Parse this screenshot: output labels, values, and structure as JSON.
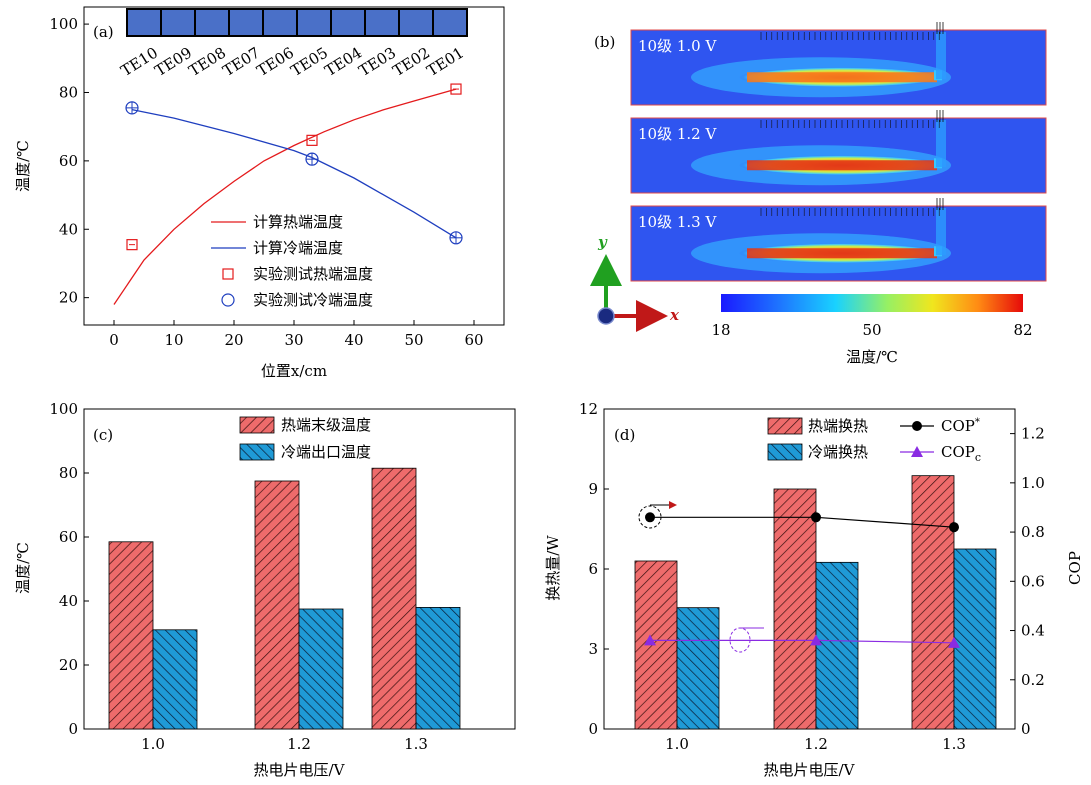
{
  "panels": {
    "a": {
      "tag": "(a)"
    },
    "b": {
      "tag": "(b)"
    },
    "c": {
      "tag": "(c)"
    },
    "d": {
      "tag": "(d)"
    }
  },
  "chart_data": [
    {
      "id": "a",
      "type": "line",
      "xlabel": "位置x/cm",
      "ylabel": "温度/℃",
      "xlim": [
        -5,
        65
      ],
      "ylim": [
        12,
        105
      ],
      "xticks": [
        0,
        10,
        20,
        30,
        40,
        50,
        60
      ],
      "yticks": [
        20,
        40,
        60,
        80,
        100
      ],
      "sensor_labels": [
        "TE10",
        "TE09",
        "TE08",
        "TE07",
        "TE06",
        "TE05",
        "TE04",
        "TE03",
        "TE02",
        "TE01"
      ],
      "series": [
        {
          "name": "计算热端温度",
          "style": "line",
          "color": "#e41a1c",
          "points": [
            [
              0,
              18
            ],
            [
              5,
              31
            ],
            [
              10,
              40
            ],
            [
              15,
              47.5
            ],
            [
              20,
              54
            ],
            [
              25,
              60
            ],
            [
              30,
              64.5
            ],
            [
              35,
              68.5
            ],
            [
              40,
              72
            ],
            [
              45,
              75
            ],
            [
              50,
              77.5
            ],
            [
              57,
              81
            ]
          ]
        },
        {
          "name": "计算冷端温度",
          "style": "line",
          "color": "#1f3fbf",
          "points": [
            [
              3,
              75
            ],
            [
              10,
              72.5
            ],
            [
              20,
              68
            ],
            [
              30,
              63
            ],
            [
              33,
              61
            ],
            [
              40,
              55
            ],
            [
              50,
              45
            ],
            [
              57,
              37.5
            ]
          ]
        },
        {
          "name": "实验测试热端温度",
          "style": "square",
          "color": "#e41a1c",
          "points": [
            [
              3,
              35.5
            ],
            [
              33,
              66
            ],
            [
              57,
              81
            ]
          ]
        },
        {
          "name": "实验测试冷端温度",
          "style": "circle",
          "color": "#1f3fbf",
          "points": [
            [
              3,
              75.5
            ],
            [
              33,
              60.5
            ],
            [
              57,
              37.5
            ]
          ]
        }
      ]
    },
    {
      "id": "b",
      "type": "heatmap",
      "rows": [
        "10级 1.0 V",
        "10级 1.2 V",
        "10级 1.3 V"
      ],
      "colorbar": {
        "min": 18,
        "mid": 50,
        "max": 82,
        "label": "温度/℃"
      },
      "axes": {
        "x": "x",
        "y": "y"
      }
    },
    {
      "id": "c",
      "type": "bar",
      "xlabel": "热电片电压/V",
      "ylabel": "温度/℃",
      "categories": [
        "1.0",
        "1.2",
        "1.3"
      ],
      "ylim": [
        0,
        100
      ],
      "yticks": [
        0,
        20,
        40,
        60,
        80,
        100
      ],
      "series": [
        {
          "name": "热端末级温度",
          "color": "#ee6b6b",
          "values": [
            58.5,
            77.5,
            81.5
          ]
        },
        {
          "name": "冷端出口温度",
          "color": "#1f9ad6",
          "values": [
            31,
            37.5,
            38
          ]
        }
      ]
    },
    {
      "id": "d",
      "type": "bar",
      "xlabel": "热电片电压/V",
      "ylabel": "换热量/W",
      "ylabel_right": "COP",
      "categories": [
        "1.0",
        "1.2",
        "1.3"
      ],
      "ylim": [
        0,
        12
      ],
      "yticks": [
        0,
        3,
        6,
        9,
        12
      ],
      "ylim_right": [
        0,
        1.3
      ],
      "yticks_right": [
        "0",
        "0.2",
        "0.4",
        "0.6",
        "0.8",
        "1.0",
        "1.2"
      ],
      "series": [
        {
          "name": "热端换热",
          "color": "#ee6b6b",
          "values": [
            6.3,
            9.0,
            9.5
          ]
        },
        {
          "name": "冷端换热",
          "color": "#1f9ad6",
          "values": [
            4.55,
            6.25,
            6.75
          ]
        }
      ],
      "line_series": [
        {
          "name": "COP",
          "sup": "*",
          "color": "#000000",
          "marker": "circle",
          "values": [
            0.86,
            0.86,
            0.82
          ]
        },
        {
          "name": "COP",
          "sub": "c",
          "color": "#8a2be2",
          "marker": "triangle",
          "values": [
            0.36,
            0.36,
            0.35
          ]
        }
      ]
    }
  ]
}
